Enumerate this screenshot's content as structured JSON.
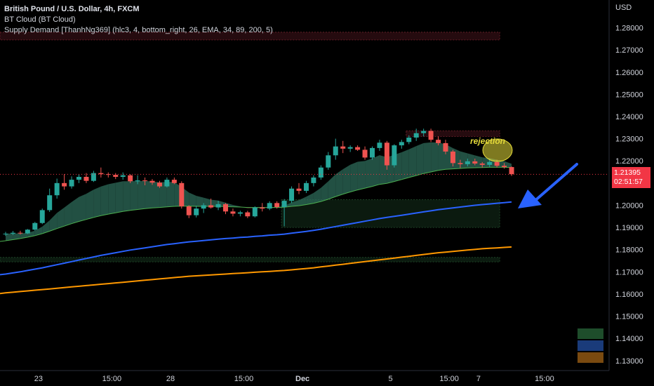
{
  "legend": {
    "title": "British Pound / U.S. Dollar, 4h, FXCM",
    "indicator_1": "BT Cloud (BT Cloud)",
    "indicator_2": "Supply Demand [ThanhNg369] (hlc3, 4, bottom_right, 26, EMA, 34, 89, 200, 5)"
  },
  "currency": "USD",
  "current_price": "1.21395",
  "countdown": "02:51:57",
  "annotation": "rejection",
  "colors": {
    "background": "#000000",
    "bull": "#26a69a",
    "bear": "#ef5350",
    "ema34": "#4caf50",
    "ema89": "#2962ff",
    "ema200": "#ff9800",
    "cloud_bull": "#2e6b5a",
    "cloud_bear": "#6b2a2a",
    "arrow": "#2962ff",
    "annotation": "#e6dc3a"
  },
  "chart_data": {
    "type": "candlestick",
    "symbol": "GBPUSD",
    "timeframe": "4h",
    "ylim": [
      1.125,
      1.285
    ],
    "y_ticks": [
      "1.28000",
      "1.27000",
      "1.26000",
      "1.25000",
      "1.24000",
      "1.23000",
      "1.22000",
      "1.21000",
      "1.20000",
      "1.19000",
      "1.18000",
      "1.17000",
      "1.16000",
      "1.15000",
      "1.14000",
      "1.13000"
    ],
    "x_ticks": [
      {
        "label": "23",
        "bar": 2
      },
      {
        "label": "15:00",
        "bar": 12
      },
      {
        "label": "28",
        "bar": 20
      },
      {
        "label": "15:00",
        "bar": 30
      },
      {
        "label": "Dec",
        "bar": 38
      },
      {
        "label": "5",
        "bar": 50
      },
      {
        "label": "15:00",
        "bar": 58
      },
      {
        "label": "7",
        "bar": 62
      },
      {
        "label": "15:00",
        "bar": 71
      }
    ],
    "candles": [
      {
        "o": 1.187,
        "h": 1.188,
        "l": 1.1862,
        "c": 1.1872
      },
      {
        "o": 1.1872,
        "h": 1.1884,
        "l": 1.1866,
        "c": 1.1876
      },
      {
        "o": 1.1876,
        "h": 1.1885,
        "l": 1.1868,
        "c": 1.1873
      },
      {
        "o": 1.1873,
        "h": 1.1893,
        "l": 1.187,
        "c": 1.189
      },
      {
        "o": 1.189,
        "h": 1.1925,
        "l": 1.1885,
        "c": 1.192
      },
      {
        "o": 1.192,
        "h": 1.1985,
        "l": 1.1915,
        "c": 1.1978
      },
      {
        "o": 1.1978,
        "h": 1.2075,
        "l": 1.197,
        "c": 1.2045
      },
      {
        "o": 1.2045,
        "h": 1.212,
        "l": 1.203,
        "c": 1.21
      },
      {
        "o": 1.21,
        "h": 1.214,
        "l": 1.207,
        "c": 1.2085
      },
      {
        "o": 1.2085,
        "h": 1.213,
        "l": 1.2075,
        "c": 1.2115
      },
      {
        "o": 1.2115,
        "h": 1.214,
        "l": 1.21,
        "c": 1.2128
      },
      {
        "o": 1.2128,
        "h": 1.2145,
        "l": 1.21,
        "c": 1.211
      },
      {
        "o": 1.211,
        "h": 1.2155,
        "l": 1.2105,
        "c": 1.2145
      },
      {
        "o": 1.2145,
        "h": 1.217,
        "l": 1.2125,
        "c": 1.214
      },
      {
        "o": 1.214,
        "h": 1.2148,
        "l": 1.2125,
        "c": 1.2137
      },
      {
        "o": 1.2137,
        "h": 1.2145,
        "l": 1.2118,
        "c": 1.2128
      },
      {
        "o": 1.2128,
        "h": 1.2148,
        "l": 1.2115,
        "c": 1.2135
      },
      {
        "o": 1.2135,
        "h": 1.214,
        "l": 1.21,
        "c": 1.2108
      },
      {
        "o": 1.2108,
        "h": 1.2135,
        "l": 1.2095,
        "c": 1.2112
      },
      {
        "o": 1.2112,
        "h": 1.2125,
        "l": 1.209,
        "c": 1.211
      },
      {
        "o": 1.211,
        "h": 1.2118,
        "l": 1.2092,
        "c": 1.2102
      },
      {
        "o": 1.2102,
        "h": 1.211,
        "l": 1.2078,
        "c": 1.2085
      },
      {
        "o": 1.2085,
        "h": 1.2125,
        "l": 1.208,
        "c": 1.2115
      },
      {
        "o": 1.2115,
        "h": 1.2125,
        "l": 1.2095,
        "c": 1.21
      },
      {
        "o": 1.21,
        "h": 1.2108,
        "l": 1.1985,
        "c": 1.1995
      },
      {
        "o": 1.1995,
        "h": 1.2,
        "l": 1.1942,
        "c": 1.1955
      },
      {
        "o": 1.1955,
        "h": 1.1998,
        "l": 1.1945,
        "c": 1.1985
      },
      {
        "o": 1.1985,
        "h": 1.201,
        "l": 1.1965,
        "c": 1.2
      },
      {
        "o": 1.2,
        "h": 1.203,
        "l": 1.1985,
        "c": 1.199
      },
      {
        "o": 1.199,
        "h": 1.202,
        "l": 1.1978,
        "c": 1.2005
      },
      {
        "o": 1.2005,
        "h": 1.201,
        "l": 1.196,
        "c": 1.1972
      },
      {
        "o": 1.1972,
        "h": 1.1985,
        "l": 1.195,
        "c": 1.1962
      },
      {
        "o": 1.1962,
        "h": 1.1975,
        "l": 1.195,
        "c": 1.1968
      },
      {
        "o": 1.1968,
        "h": 1.1975,
        "l": 1.1942,
        "c": 1.195
      },
      {
        "o": 1.195,
        "h": 1.1995,
        "l": 1.1945,
        "c": 1.199
      },
      {
        "o": 1.199,
        "h": 1.201,
        "l": 1.1972,
        "c": 1.1985
      },
      {
        "o": 1.1985,
        "h": 1.2018,
        "l": 1.1978,
        "c": 1.201
      },
      {
        "o": 1.201,
        "h": 1.2018,
        "l": 1.1985,
        "c": 1.1992
      },
      {
        "o": 1.1992,
        "h": 1.2028,
        "l": 1.1905,
        "c": 1.202
      },
      {
        "o": 1.202,
        "h": 1.2085,
        "l": 1.201,
        "c": 1.2075
      },
      {
        "o": 1.2075,
        "h": 1.21,
        "l": 1.205,
        "c": 1.2065
      },
      {
        "o": 1.2065,
        "h": 1.211,
        "l": 1.2055,
        "c": 1.21
      },
      {
        "o": 1.21,
        "h": 1.2135,
        "l": 1.2085,
        "c": 1.2125
      },
      {
        "o": 1.2125,
        "h": 1.218,
        "l": 1.2115,
        "c": 1.217
      },
      {
        "o": 1.217,
        "h": 1.224,
        "l": 1.216,
        "c": 1.2225
      },
      {
        "o": 1.2225,
        "h": 1.23,
        "l": 1.2205,
        "c": 1.2265
      },
      {
        "o": 1.2265,
        "h": 1.229,
        "l": 1.2235,
        "c": 1.2255
      },
      {
        "o": 1.2255,
        "h": 1.227,
        "l": 1.224,
        "c": 1.2262
      },
      {
        "o": 1.2262,
        "h": 1.227,
        "l": 1.2245,
        "c": 1.225
      },
      {
        "o": 1.225,
        "h": 1.2265,
        "l": 1.2205,
        "c": 1.2215
      },
      {
        "o": 1.2215,
        "h": 1.2265,
        "l": 1.2205,
        "c": 1.2258
      },
      {
        "o": 1.2258,
        "h": 1.2295,
        "l": 1.2245,
        "c": 1.2282
      },
      {
        "o": 1.2282,
        "h": 1.229,
        "l": 1.216,
        "c": 1.218
      },
      {
        "o": 1.218,
        "h": 1.2275,
        "l": 1.217,
        "c": 1.227
      },
      {
        "o": 1.227,
        "h": 1.2295,
        "l": 1.2255,
        "c": 1.2285
      },
      {
        "o": 1.2285,
        "h": 1.2315,
        "l": 1.2275,
        "c": 1.2305
      },
      {
        "o": 1.2305,
        "h": 1.2345,
        "l": 1.229,
        "c": 1.2325
      },
      {
        "o": 1.2325,
        "h": 1.2345,
        "l": 1.231,
        "c": 1.2335
      },
      {
        "o": 1.2335,
        "h": 1.2345,
        "l": 1.2285,
        "c": 1.2295
      },
      {
        "o": 1.2295,
        "h": 1.231,
        "l": 1.227,
        "c": 1.228
      },
      {
        "o": 1.228,
        "h": 1.2295,
        "l": 1.223,
        "c": 1.2242
      },
      {
        "o": 1.2242,
        "h": 1.225,
        "l": 1.2175,
        "c": 1.219
      },
      {
        "o": 1.219,
        "h": 1.2205,
        "l": 1.2168,
        "c": 1.2185
      },
      {
        "o": 1.2185,
        "h": 1.221,
        "l": 1.2175,
        "c": 1.2198
      },
      {
        "o": 1.2198,
        "h": 1.221,
        "l": 1.218,
        "c": 1.2188
      },
      {
        "o": 1.2188,
        "h": 1.2195,
        "l": 1.217,
        "c": 1.2182
      },
      {
        "o": 1.2182,
        "h": 1.221,
        "l": 1.2172,
        "c": 1.2195
      },
      {
        "o": 1.2195,
        "h": 1.2205,
        "l": 1.217,
        "c": 1.2178
      },
      {
        "o": 1.2178,
        "h": 1.219,
        "l": 1.2165,
        "c": 1.2172
      },
      {
        "o": 1.2172,
        "h": 1.2175,
        "l": 1.2132,
        "c": 1.214
      }
    ],
    "ema34": [
      1.184,
      1.1845,
      1.185,
      1.1856,
      1.1863,
      1.1872,
      1.1883,
      1.1895,
      1.1906,
      1.1917,
      1.1927,
      1.1936,
      1.1945,
      1.1953,
      1.196,
      1.1966,
      1.1972,
      1.1977,
      1.1981,
      1.1985,
      1.1988,
      1.199,
      1.1993,
      1.1995,
      1.1996,
      1.1996,
      1.1995,
      1.1995,
      1.1995,
      1.1995,
      1.1994,
      1.1993,
      1.1992,
      1.199,
      1.199,
      1.199,
      1.199,
      1.199,
      1.1991,
      1.1995,
      1.1998,
      1.2003,
      1.2009,
      1.2017,
      1.2027,
      1.2039,
      1.205,
      1.206,
      1.2069,
      1.2077,
      1.2085,
      1.2094,
      1.2099,
      1.2107,
      1.2116,
      1.2125,
      1.2134,
      1.2143,
      1.215,
      1.2157,
      1.2162,
      1.2164,
      1.2166,
      1.2168,
      1.2169,
      1.217,
      1.2171,
      1.2171,
      1.2171,
      1.217
    ],
    "ema89": [
      1.169,
      1.1695,
      1.17,
      1.1706,
      1.1712,
      1.1718,
      1.1725,
      1.1732,
      1.1739,
      1.1746,
      1.1753,
      1.176,
      1.1767,
      1.1774,
      1.178,
      1.1786,
      1.1792,
      1.1798,
      1.1803,
      1.1808,
      1.1813,
      1.1818,
      1.1823,
      1.1827,
      1.1831,
      1.1835,
      1.1838,
      1.1841,
      1.1844,
      1.1847,
      1.185,
      1.1852,
      1.1855,
      1.1857,
      1.186,
      1.1862,
      1.1865,
      1.1867,
      1.187,
      1.1874,
      1.1878,
      1.1882,
      1.1887,
      1.1892,
      1.1898,
      1.1904,
      1.191,
      1.1916,
      1.1922,
      1.1928,
      1.1934,
      1.194,
      1.1945,
      1.195,
      1.1955,
      1.196,
      1.1965,
      1.197,
      1.1975,
      1.198,
      1.1984,
      1.1988,
      1.1992,
      1.1996,
      1.2,
      1.2003,
      1.2006,
      1.2009,
      1.2012,
      1.2015
    ],
    "ema200": [
      1.1605,
      1.1608,
      1.1611,
      1.1614,
      1.1617,
      1.162,
      1.1623,
      1.1626,
      1.1629,
      1.1632,
      1.1635,
      1.1638,
      1.1641,
      1.1644,
      1.1647,
      1.165,
      1.1653,
      1.1656,
      1.1659,
      1.1662,
      1.1665,
      1.1668,
      1.1671,
      1.1674,
      1.1677,
      1.168,
      1.1682,
      1.1684,
      1.1686,
      1.1688,
      1.169,
      1.1692,
      1.1694,
      1.1696,
      1.1698,
      1.17,
      1.1702,
      1.1704,
      1.1706,
      1.1709,
      1.1712,
      1.1715,
      1.1718,
      1.1722,
      1.1726,
      1.173,
      1.1734,
      1.1738,
      1.1742,
      1.1746,
      1.175,
      1.1754,
      1.1758,
      1.1762,
      1.1766,
      1.177,
      1.1774,
      1.1778,
      1.1782,
      1.1786,
      1.1789,
      1.1792,
      1.1795,
      1.1798,
      1.1801,
      1.1804,
      1.1806,
      1.1808,
      1.181,
      1.1812
    ],
    "zones": [
      {
        "name": "supply-top",
        "top": 1.278,
        "bottom": 1.2745,
        "color": "#6b1f2a",
        "x_from": 0,
        "x_to": 67
      },
      {
        "name": "supply-recent",
        "top": 1.2335,
        "bottom": 1.231,
        "color": "#6b1f2a",
        "x_from": 55,
        "x_to": 67
      },
      {
        "name": "demand-mid",
        "top": 1.2025,
        "bottom": 1.19,
        "color": "#1f4a2a",
        "x_from": 38,
        "x_to": 67
      },
      {
        "name": "demand-low",
        "top": 1.1765,
        "bottom": 1.1745,
        "color": "#1f4a2a",
        "x_from": 0,
        "x_to": 67
      }
    ],
    "current_price_value": 1.21395,
    "legend_swatches": [
      "#1e4d2b",
      "#1a3b7a",
      "#7a4a10"
    ]
  }
}
